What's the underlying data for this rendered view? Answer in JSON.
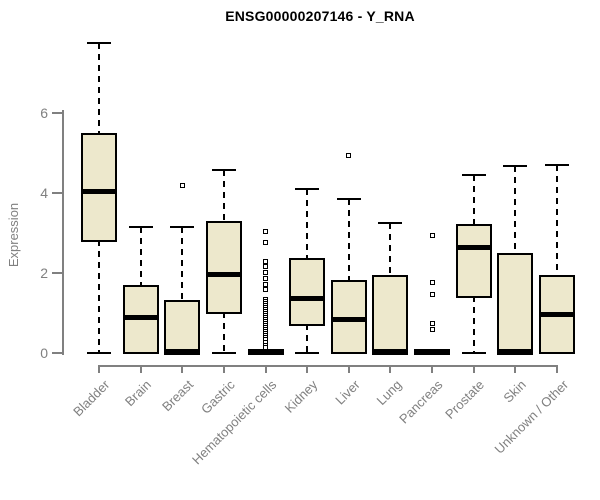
{
  "chart_data": {
    "type": "boxplot",
    "title": "ENSG00000207146 - Y_RNA",
    "ylabel": "Expression",
    "yticks": [
      0,
      2,
      4,
      6
    ],
    "ylim": [
      0,
      7.8
    ],
    "grid": false,
    "legend": "none",
    "categories": [
      "Bladder",
      "Brain",
      "Breast",
      "Gastric",
      "Hematopoietic cells",
      "Kidney",
      "Liver",
      "Lung",
      "Pancreas",
      "Prostate",
      "Skin",
      "Unknown / Other"
    ],
    "boxes": [
      {
        "category": "Bladder",
        "low": 0,
        "q1": 2.83,
        "median": 4.05,
        "q3": 5.45,
        "high": 7.75,
        "outliers": []
      },
      {
        "category": "Brain",
        "low": 0,
        "q1": 0.02,
        "median": 0.88,
        "q3": 1.65,
        "high": 3.15,
        "outliers": []
      },
      {
        "category": "Breast",
        "low": 0,
        "q1": 0.0,
        "median": 0.05,
        "q3": 1.28,
        "high": 3.15,
        "outliers": [
          4.18
        ]
      },
      {
        "category": "Gastric",
        "low": 0,
        "q1": 1.02,
        "median": 1.97,
        "q3": 3.25,
        "high": 4.58,
        "outliers": []
      },
      {
        "category": "Hematopoietic cells",
        "low": 0,
        "q1": 0.0,
        "median": 0.02,
        "q3": 0.04,
        "high": 0.05,
        "outliers": [
          3.03,
          2.76,
          2.28,
          2.16,
          2.02,
          1.86,
          1.72,
          1.58,
          1.33,
          1.28,
          1.23,
          1.18,
          1.13,
          1.08,
          1.03,
          0.98,
          0.93,
          0.88,
          0.83,
          0.78,
          0.73,
          0.68,
          0.63,
          0.58,
          0.53,
          0.48,
          0.43,
          0.38,
          0.33,
          0.27,
          0.2,
          0.15
        ]
      },
      {
        "category": "Kidney",
        "low": 0,
        "q1": 0.73,
        "median": 1.36,
        "q3": 2.32,
        "high": 4.1,
        "outliers": []
      },
      {
        "category": "Liver",
        "low": 0,
        "q1": 0.02,
        "median": 0.85,
        "q3": 1.77,
        "high": 3.85,
        "outliers": [
          4.95
        ]
      },
      {
        "category": "Lung",
        "low": 0,
        "q1": 0.0,
        "median": 0.05,
        "q3": 1.9,
        "high": 3.25,
        "outliers": []
      },
      {
        "category": "Pancreas",
        "low": 0,
        "q1": 0.0,
        "median": 0.02,
        "q3": 0.04,
        "high": 0.05,
        "outliers": [
          2.93,
          1.77,
          1.46,
          0.75,
          0.58
        ]
      },
      {
        "category": "Prostate",
        "low": 0,
        "q1": 1.42,
        "median": 2.65,
        "q3": 3.17,
        "high": 4.45,
        "outliers": []
      },
      {
        "category": "Skin",
        "low": 0,
        "q1": 0.0,
        "median": 0.05,
        "q3": 2.46,
        "high": 4.67,
        "outliers": []
      },
      {
        "category": "Unknown / Other",
        "low": 0,
        "q1": 0.02,
        "median": 0.97,
        "q3": 1.9,
        "high": 4.7,
        "outliers": []
      }
    ],
    "colors": {
      "box_fill": "#EDE8CC",
      "box_border": "#000000",
      "median": "#000000",
      "whisker": "#000000",
      "axis": "#808080",
      "tick_label": "#808080",
      "title": "#000000",
      "background": "#FFFFFF"
    }
  }
}
